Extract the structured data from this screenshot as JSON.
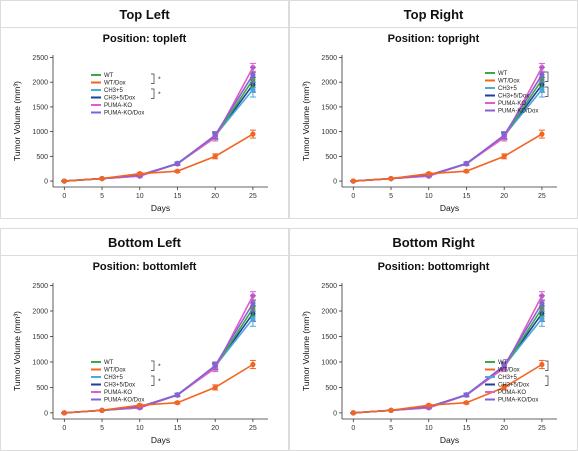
{
  "panels": [
    {
      "header": "Top Left",
      "position_title": "Position: topleft",
      "legend_position": "topleft"
    },
    {
      "header": "Top Right",
      "position_title": "Position: topright",
      "legend_position": "topright"
    },
    {
      "header": "Bottom Left",
      "position_title": "Position: bottomleft",
      "legend_position": "bottomleft"
    },
    {
      "header": "Bottom Right",
      "position_title": "Position: bottomright",
      "legend_position": "bottomright"
    }
  ],
  "chart_data": {
    "type": "line",
    "xlabel": "Days",
    "ylabel": "Tumor Volume (mm³)",
    "x": [
      0,
      5,
      10,
      15,
      20,
      25
    ],
    "xlim": [
      -1.5,
      27
    ],
    "ylim": [
      -120,
      2550
    ],
    "yticks": [
      0,
      500,
      1000,
      1500,
      2000,
      2500
    ],
    "grid": false,
    "significance_marks": [
      "*",
      "*"
    ],
    "series": [
      {
        "name": "WT",
        "color": "#3aa845",
        "values": [
          0,
          50,
          100,
          350,
          900,
          2050
        ],
        "errors": [
          5,
          10,
          20,
          30,
          60,
          150
        ]
      },
      {
        "name": "WT/Dox",
        "color": "#f26522",
        "values": [
          0,
          50,
          150,
          200,
          500,
          950
        ],
        "errors": [
          5,
          10,
          20,
          25,
          50,
          80
        ]
      },
      {
        "name": "CH3+5",
        "color": "#4aa8dc",
        "values": [
          0,
          50,
          110,
          360,
          920,
          1850
        ],
        "errors": [
          5,
          10,
          20,
          30,
          70,
          150
        ]
      },
      {
        "name": "CH3+5/Dox",
        "color": "#1f3f99",
        "values": [
          0,
          50,
          120,
          350,
          910,
          1950
        ],
        "errors": [
          5,
          10,
          20,
          30,
          70,
          150
        ]
      },
      {
        "name": "PUMA-KO",
        "color": "#e05cc8",
        "values": [
          0,
          50,
          100,
          350,
          880,
          2300
        ],
        "errors": [
          5,
          10,
          20,
          30,
          70,
          80
        ]
      },
      {
        "name": "PUMA-KO/Dox",
        "color": "#8a5fd6",
        "values": [
          0,
          50,
          120,
          350,
          930,
          2150
        ],
        "errors": [
          5,
          10,
          20,
          30,
          70,
          150
        ]
      }
    ]
  }
}
